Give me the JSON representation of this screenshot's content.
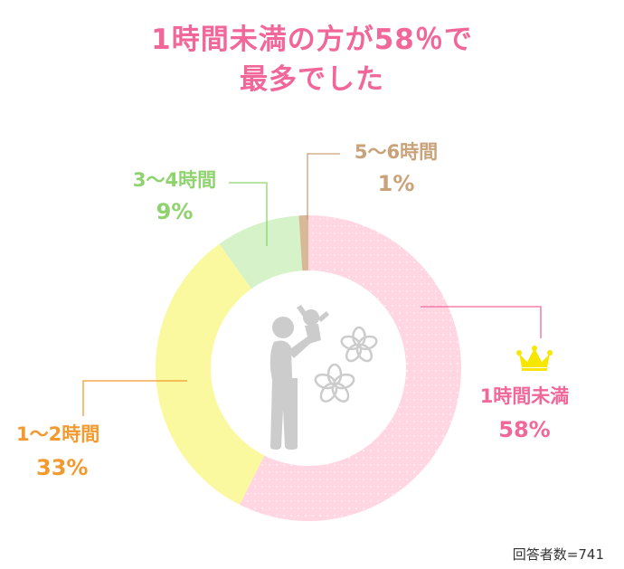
{
  "title": {
    "line1": "1時間未満の方が58％で",
    "line2": "最多でした"
  },
  "footer": "回答者数=741",
  "chart_data": {
    "type": "pie",
    "donut": true,
    "categories": [
      "1時間未満",
      "1〜2時間",
      "3〜4時間",
      "5〜6時間"
    ],
    "values": [
      58,
      33,
      9,
      1
    ],
    "value_labels": [
      "58%",
      "33%",
      "9%",
      "1%"
    ],
    "colors": [
      "#ffd6e2",
      "#fbf9a0",
      "#d5f2c9",
      "#d7b897"
    ],
    "label_colors": [
      "#f2679a",
      "#f39a2e",
      "#8fd36e",
      "#c9a27a"
    ],
    "top_category_marker": "crown-icon"
  },
  "icons": {
    "center_illustration": "parent-lifting-child-icon",
    "decorations": [
      "flower-icon",
      "flower-icon"
    ],
    "crown": "crown-icon"
  }
}
